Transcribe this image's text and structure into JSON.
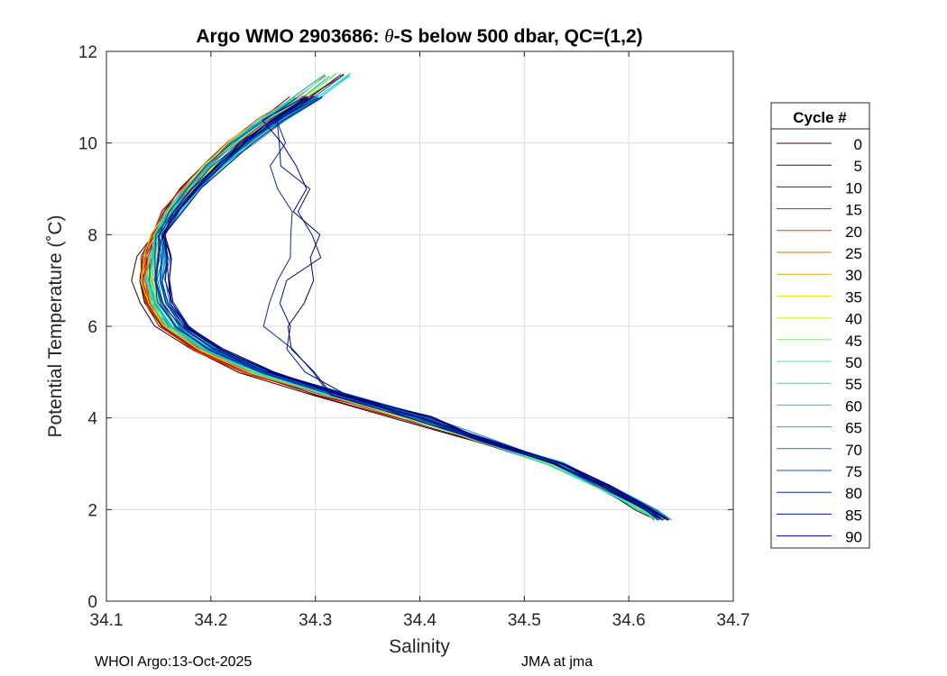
{
  "chart_data": {
    "type": "line",
    "title": "Argo WMO 2903686: θ-S below 500 dbar,  QC=(1,2)",
    "title_parts": {
      "prefix": "Argo WMO 2903686: ",
      "theta": "θ",
      "suffix": "-S below 500 dbar,  QC=(1,2)"
    },
    "xlabel": "Salinity",
    "ylabel": "Potential Temperature (˚C)",
    "xlim": [
      34.1,
      34.7
    ],
    "ylim": [
      0,
      12
    ],
    "x_ticks": [
      "34.1",
      "34.2",
      "34.3",
      "34.4",
      "34.5",
      "34.6",
      "34.7"
    ],
    "y_ticks": [
      "0",
      "2",
      "4",
      "6",
      "8",
      "10",
      "12"
    ],
    "grid": true,
    "legend_title": "Cycle #",
    "legend_position": "right",
    "series": [
      {
        "name": "0",
        "color": "#3a0000"
      },
      {
        "name": "5",
        "color": "#6a0000"
      },
      {
        "name": "10",
        "color": "#9a0000"
      },
      {
        "name": "15",
        "color": "#cc1a00"
      },
      {
        "name": "20",
        "color": "#e33b00"
      },
      {
        "name": "25",
        "color": "#e86a00"
      },
      {
        "name": "30",
        "color": "#e8a000"
      },
      {
        "name": "35",
        "color": "#f2e000"
      },
      {
        "name": "40",
        "color": "#c8f03c"
      },
      {
        "name": "45",
        "color": "#7ef07a"
      },
      {
        "name": "50",
        "color": "#3ce8a0"
      },
      {
        "name": "55",
        "color": "#1ee0c8"
      },
      {
        "name": "60",
        "color": "#00d8e8"
      },
      {
        "name": "65",
        "color": "#00b4d8"
      },
      {
        "name": "70",
        "color": "#0088c8"
      },
      {
        "name": "75",
        "color": "#005cb0"
      },
      {
        "name": "80",
        "color": "#0030a0"
      },
      {
        "name": "85",
        "color": "#00148c"
      },
      {
        "name": "90",
        "color": "#000078"
      }
    ],
    "typical_profile": {
      "theta": [
        11.5,
        11.0,
        10.5,
        10.0,
        9.5,
        9.0,
        8.5,
        8.0,
        7.5,
        7.0,
        6.5,
        6.0,
        5.5,
        5.0,
        4.5,
        4.0,
        3.5,
        3.0,
        2.5,
        2.0,
        1.8
      ],
      "salinity": [
        34.32,
        34.29,
        34.255,
        34.225,
        34.2,
        34.178,
        34.16,
        34.147,
        34.14,
        34.138,
        34.143,
        34.158,
        34.19,
        34.24,
        34.31,
        34.39,
        34.46,
        34.53,
        34.575,
        34.615,
        34.63
      ]
    }
  },
  "footer": {
    "left": "WHOI Argo:13-Oct-2025",
    "right": "JMA at jma"
  }
}
